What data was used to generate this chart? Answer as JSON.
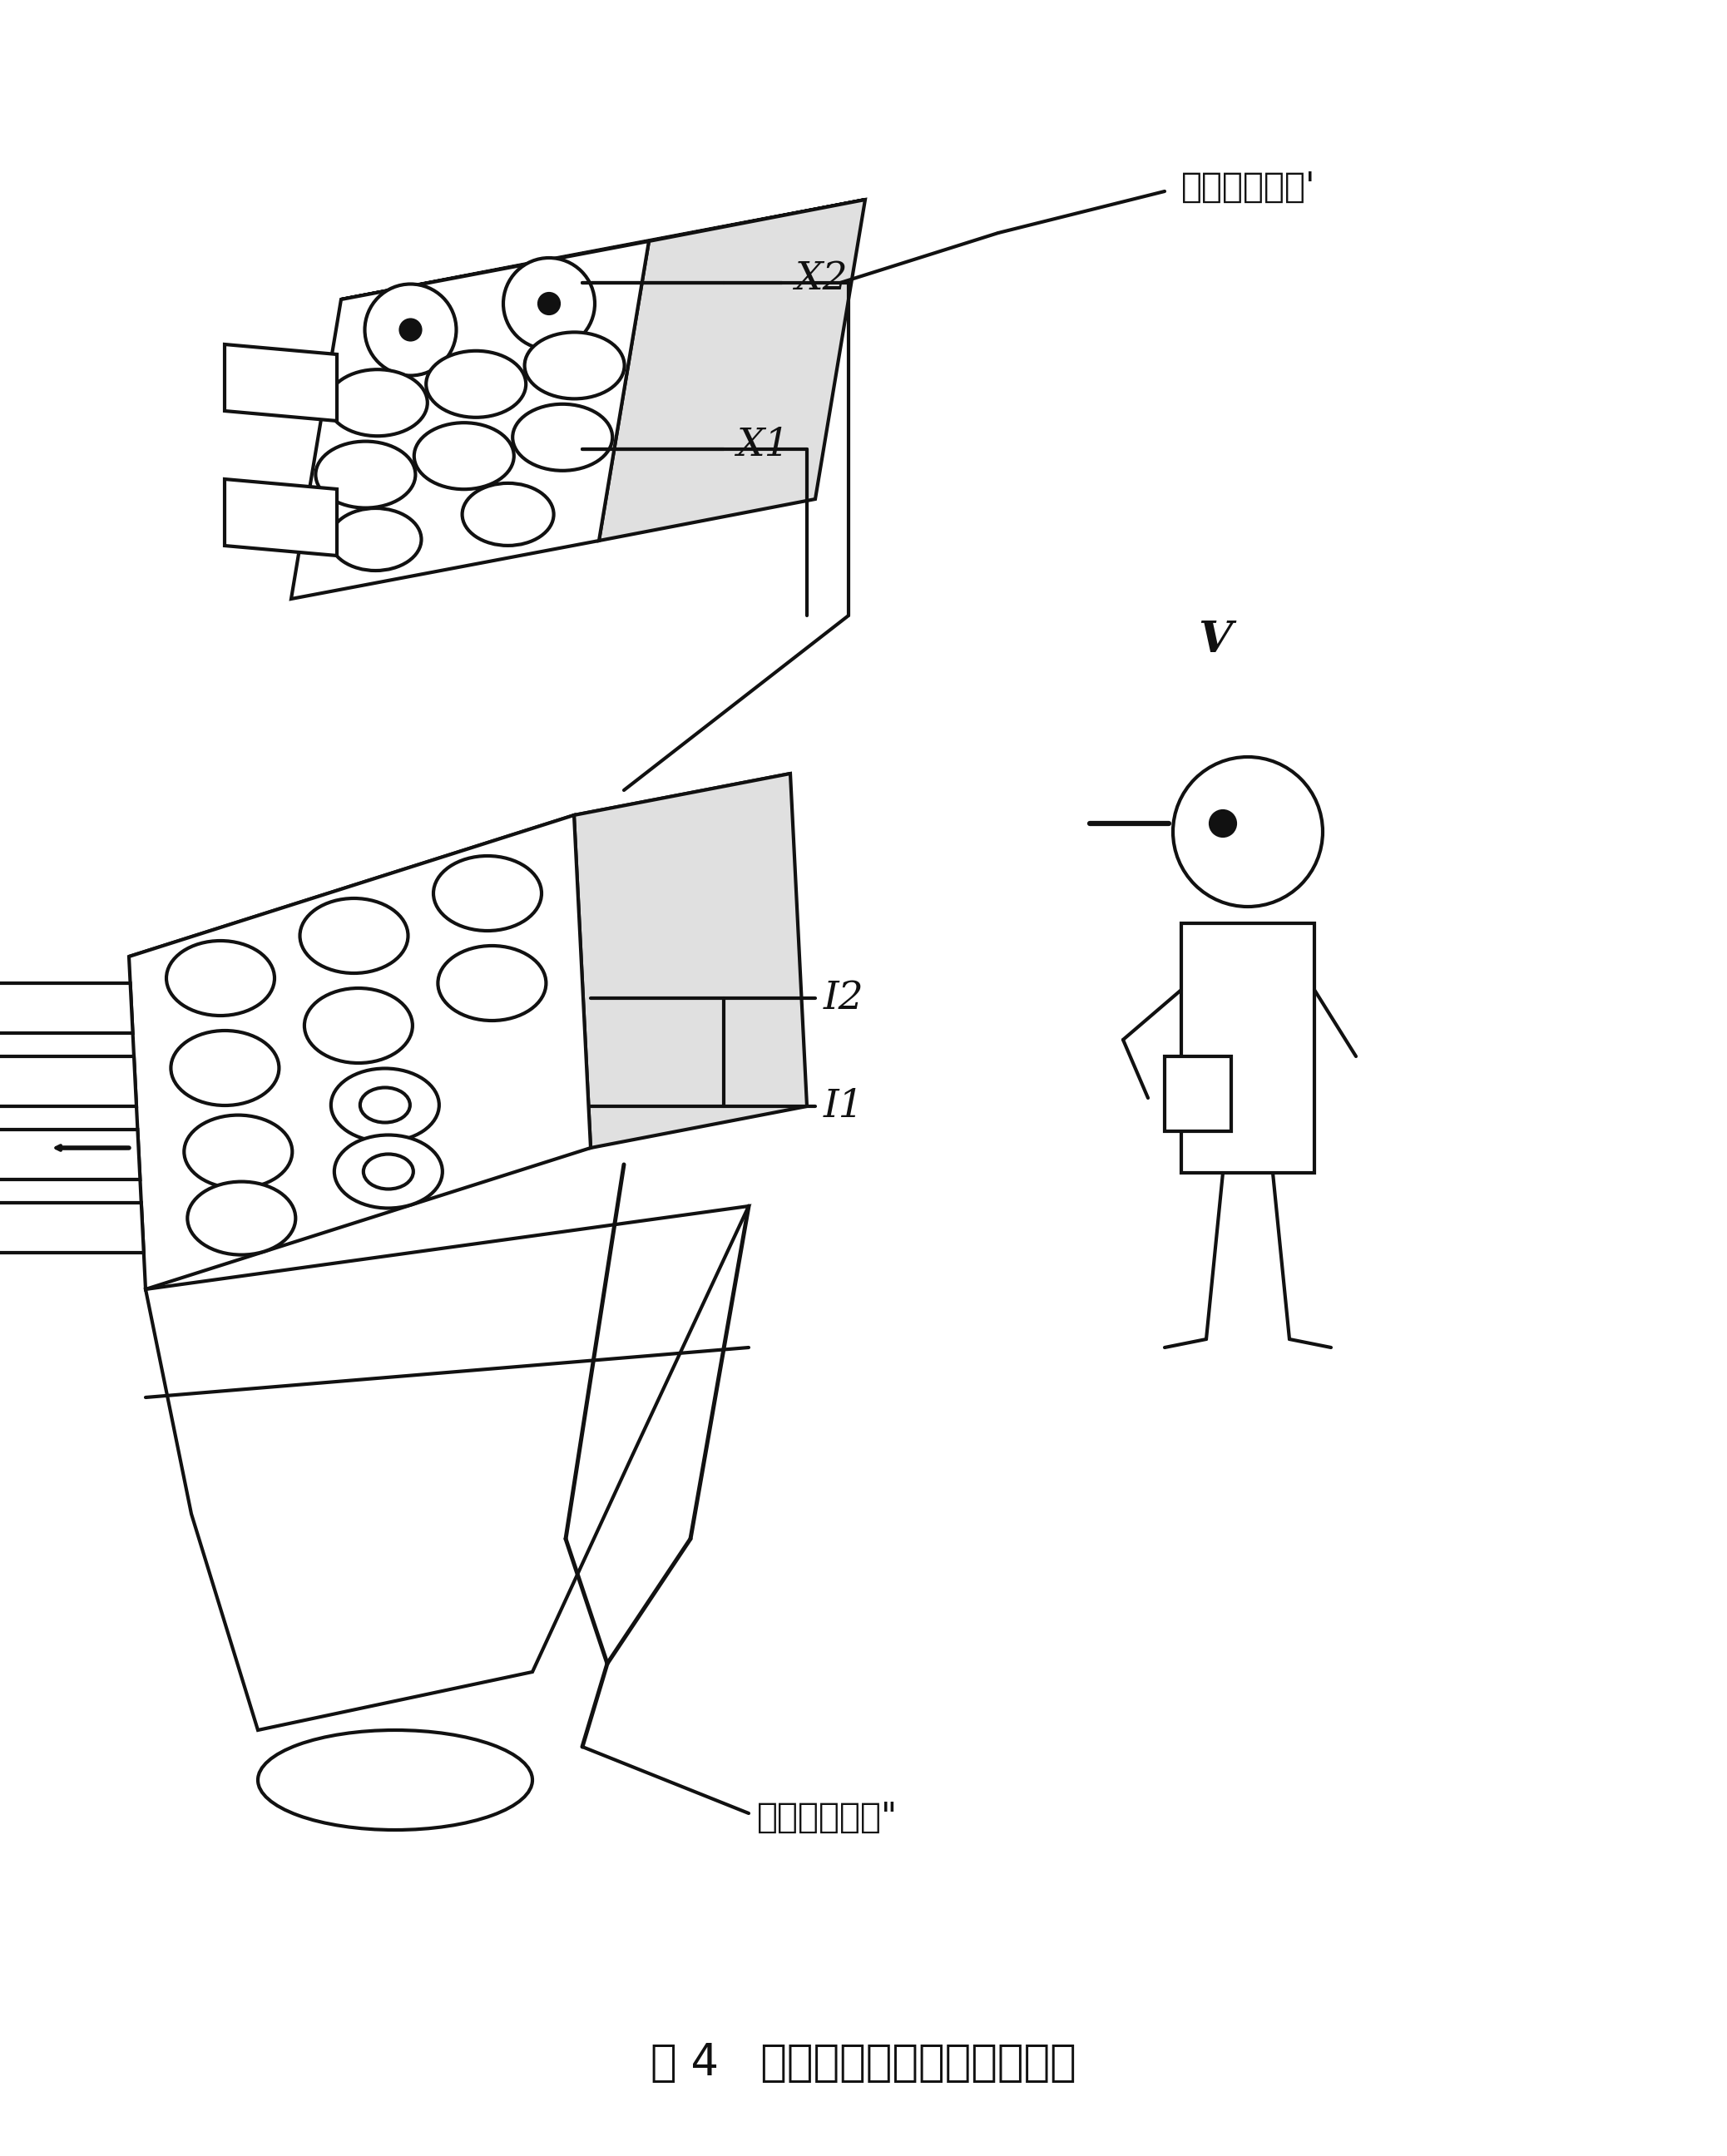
{
  "bg_color": "#ffffff",
  "title": "图 4   直列式内燃机观察者的位置",
  "title_fontsize": 38,
  "label_X2": "X2",
  "label_X1": "X1",
  "label_I2": "I2",
  "label_I1": "I1",
  "label_V": "V",
  "label_top_right": "气门按排排列'",
  "label_bottom": "气门按列排列\"",
  "line_color": "#111111",
  "line_width": 3.0,
  "fig_width": 20.76,
  "fig_height": 25.92
}
